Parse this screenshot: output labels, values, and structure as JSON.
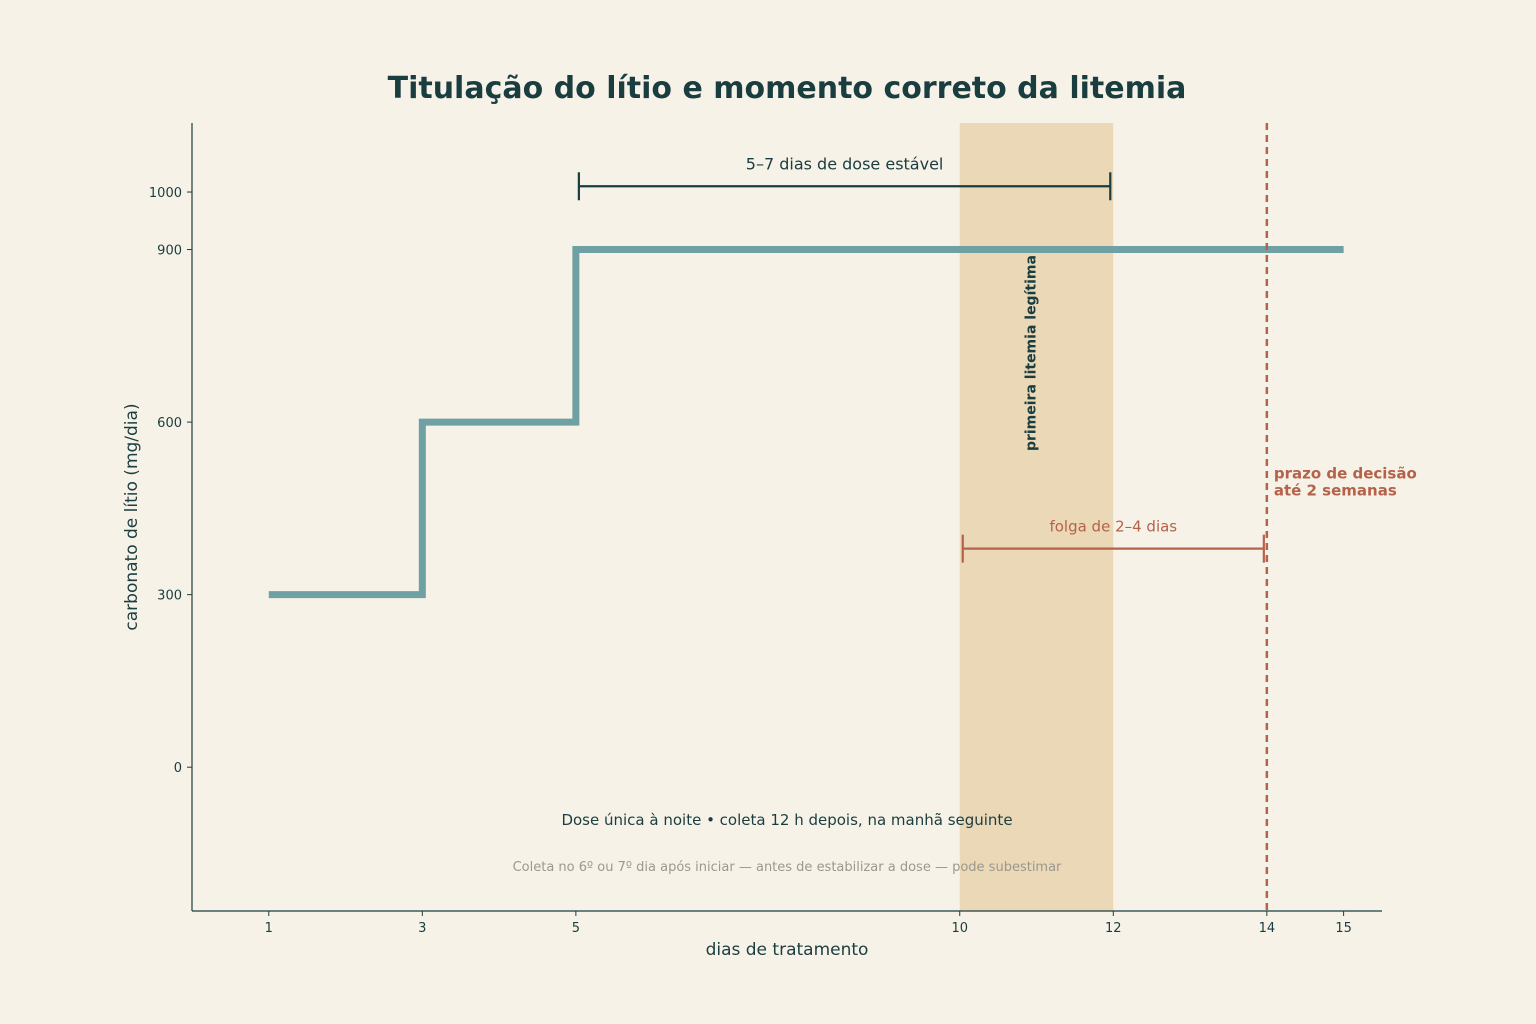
{
  "chart_data": {
    "type": "line",
    "step": true,
    "title": "Titulação do lítio e momento correto da litemia",
    "xlabel": "dias de tratamento",
    "ylabel": "carbonato de lítio (mg/dia)",
    "xlim": [
      0,
      15.5
    ],
    "ylim": [
      -250,
      1120
    ],
    "xticks": [
      1,
      3,
      5,
      10,
      12,
      14,
      15
    ],
    "yticks": [
      0,
      300,
      600,
      900,
      1000
    ],
    "grid": false,
    "series": [
      {
        "x": [
          1,
          3,
          3,
          5,
          5,
          15
        ],
        "y": [
          300,
          300,
          600,
          600,
          900,
          900
        ],
        "color": "#6fa0a4"
      }
    ],
    "band": {
      "x_start": 10,
      "x_end": 12,
      "label": "primeira litemia legítima",
      "color": "#e9d3ae"
    },
    "vline": {
      "x": 14,
      "label_line1": "prazo de decisão",
      "label_line2": "até 2 semanas",
      "color": "#b5624a"
    },
    "annotations": {
      "stable_dose": {
        "x_start": 5,
        "x_end": 12,
        "y": 1010,
        "label": "5–7 dias de dose estável",
        "color": "#1a3d40"
      },
      "margin": {
        "x_start": 10,
        "x_end": 14,
        "y": 380,
        "label": "folga de 2–4 dias",
        "color": "#b5624a"
      }
    },
    "notes": {
      "main": "Dose única à noite • coleta 12 h depois, na manhã seguinte",
      "secondary": "Coleta no 6º ou 7º dia após iniciar — antes de estabilizar a dose — pode subestimar"
    }
  }
}
